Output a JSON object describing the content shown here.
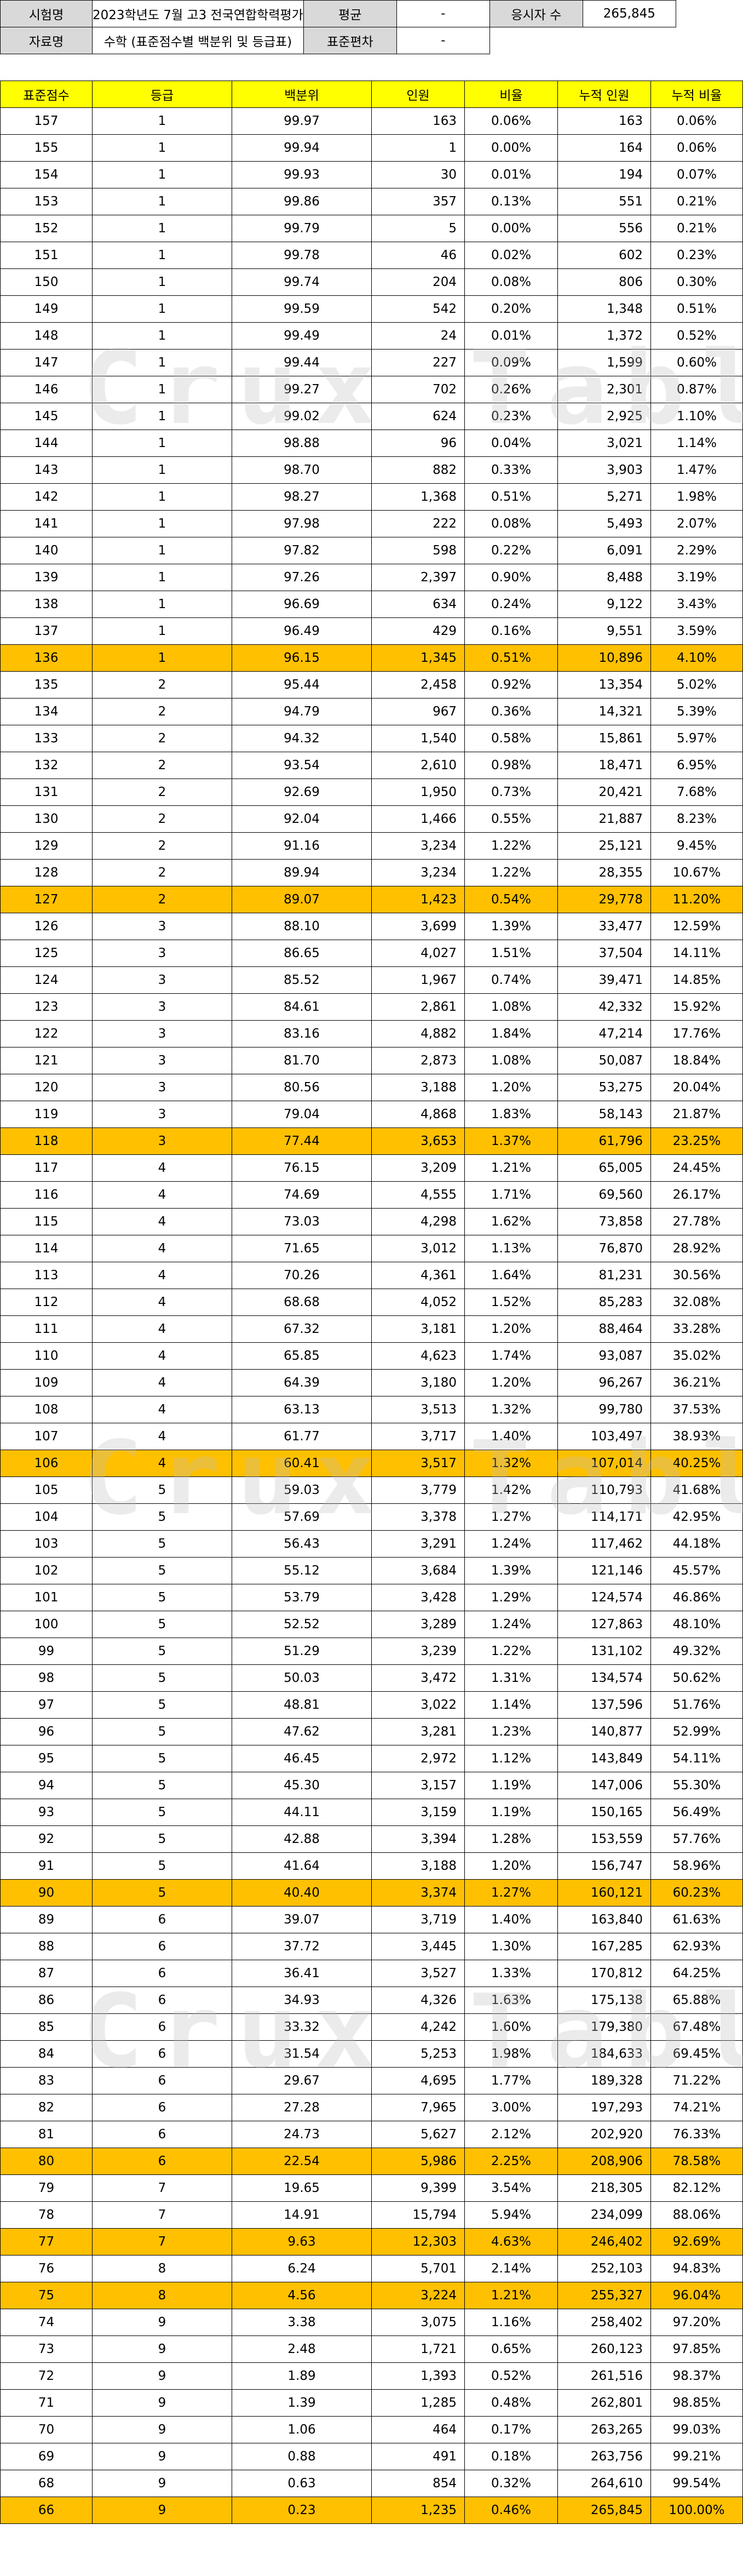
{
  "info": {
    "exam_label": "시험명",
    "exam_value": "2023학년도 7월 고3 전국연합학력평가",
    "mean_label": "평균",
    "mean_value": "-",
    "takers_label": "응시자 수",
    "takers_value": "265,845",
    "data_label": "자료명",
    "data_value": "수학 (표준점수별 백분위 및 등급표)",
    "sd_label": "표준편차",
    "sd_value": "-"
  },
  "table": {
    "headers": [
      "표준점수",
      "등급",
      "백분위",
      "인원",
      "비율",
      "누적 인원",
      "누적 비율"
    ],
    "highlight_color": "#ffc000",
    "header_color": "#ffff00",
    "rows": [
      {
        "cells": [
          "157",
          "1",
          "99.97",
          "163",
          "0.06%",
          "163",
          "0.06%"
        ],
        "hl": false
      },
      {
        "cells": [
          "155",
          "1",
          "99.94",
          "1",
          "0.00%",
          "164",
          "0.06%"
        ],
        "hl": false
      },
      {
        "cells": [
          "154",
          "1",
          "99.93",
          "30",
          "0.01%",
          "194",
          "0.07%"
        ],
        "hl": false
      },
      {
        "cells": [
          "153",
          "1",
          "99.86",
          "357",
          "0.13%",
          "551",
          "0.21%"
        ],
        "hl": false
      },
      {
        "cells": [
          "152",
          "1",
          "99.79",
          "5",
          "0.00%",
          "556",
          "0.21%"
        ],
        "hl": false
      },
      {
        "cells": [
          "151",
          "1",
          "99.78",
          "46",
          "0.02%",
          "602",
          "0.23%"
        ],
        "hl": false
      },
      {
        "cells": [
          "150",
          "1",
          "99.74",
          "204",
          "0.08%",
          "806",
          "0.30%"
        ],
        "hl": false
      },
      {
        "cells": [
          "149",
          "1",
          "99.59",
          "542",
          "0.20%",
          "1,348",
          "0.51%"
        ],
        "hl": false
      },
      {
        "cells": [
          "148",
          "1",
          "99.49",
          "24",
          "0.01%",
          "1,372",
          "0.52%"
        ],
        "hl": false
      },
      {
        "cells": [
          "147",
          "1",
          "99.44",
          "227",
          "0.09%",
          "1,599",
          "0.60%"
        ],
        "hl": false
      },
      {
        "cells": [
          "146",
          "1",
          "99.27",
          "702",
          "0.26%",
          "2,301",
          "0.87%"
        ],
        "hl": false
      },
      {
        "cells": [
          "145",
          "1",
          "99.02",
          "624",
          "0.23%",
          "2,925",
          "1.10%"
        ],
        "hl": false
      },
      {
        "cells": [
          "144",
          "1",
          "98.88",
          "96",
          "0.04%",
          "3,021",
          "1.14%"
        ],
        "hl": false
      },
      {
        "cells": [
          "143",
          "1",
          "98.70",
          "882",
          "0.33%",
          "3,903",
          "1.47%"
        ],
        "hl": false
      },
      {
        "cells": [
          "142",
          "1",
          "98.27",
          "1,368",
          "0.51%",
          "5,271",
          "1.98%"
        ],
        "hl": false
      },
      {
        "cells": [
          "141",
          "1",
          "97.98",
          "222",
          "0.08%",
          "5,493",
          "2.07%"
        ],
        "hl": false
      },
      {
        "cells": [
          "140",
          "1",
          "97.82",
          "598",
          "0.22%",
          "6,091",
          "2.29%"
        ],
        "hl": false
      },
      {
        "cells": [
          "139",
          "1",
          "97.26",
          "2,397",
          "0.90%",
          "8,488",
          "3.19%"
        ],
        "hl": false
      },
      {
        "cells": [
          "138",
          "1",
          "96.69",
          "634",
          "0.24%",
          "9,122",
          "3.43%"
        ],
        "hl": false
      },
      {
        "cells": [
          "137",
          "1",
          "96.49",
          "429",
          "0.16%",
          "9,551",
          "3.59%"
        ],
        "hl": false
      },
      {
        "cells": [
          "136",
          "1",
          "96.15",
          "1,345",
          "0.51%",
          "10,896",
          "4.10%"
        ],
        "hl": true
      },
      {
        "cells": [
          "135",
          "2",
          "95.44",
          "2,458",
          "0.92%",
          "13,354",
          "5.02%"
        ],
        "hl": false
      },
      {
        "cells": [
          "134",
          "2",
          "94.79",
          "967",
          "0.36%",
          "14,321",
          "5.39%"
        ],
        "hl": false
      },
      {
        "cells": [
          "133",
          "2",
          "94.32",
          "1,540",
          "0.58%",
          "15,861",
          "5.97%"
        ],
        "hl": false
      },
      {
        "cells": [
          "132",
          "2",
          "93.54",
          "2,610",
          "0.98%",
          "18,471",
          "6.95%"
        ],
        "hl": false
      },
      {
        "cells": [
          "131",
          "2",
          "92.69",
          "1,950",
          "0.73%",
          "20,421",
          "7.68%"
        ],
        "hl": false
      },
      {
        "cells": [
          "130",
          "2",
          "92.04",
          "1,466",
          "0.55%",
          "21,887",
          "8.23%"
        ],
        "hl": false
      },
      {
        "cells": [
          "129",
          "2",
          "91.16",
          "3,234",
          "1.22%",
          "25,121",
          "9.45%"
        ],
        "hl": false
      },
      {
        "cells": [
          "128",
          "2",
          "89.94",
          "3,234",
          "1.22%",
          "28,355",
          "10.67%"
        ],
        "hl": false
      },
      {
        "cells": [
          "127",
          "2",
          "89.07",
          "1,423",
          "0.54%",
          "29,778",
          "11.20%"
        ],
        "hl": true
      },
      {
        "cells": [
          "126",
          "3",
          "88.10",
          "3,699",
          "1.39%",
          "33,477",
          "12.59%"
        ],
        "hl": false
      },
      {
        "cells": [
          "125",
          "3",
          "86.65",
          "4,027",
          "1.51%",
          "37,504",
          "14.11%"
        ],
        "hl": false
      },
      {
        "cells": [
          "124",
          "3",
          "85.52",
          "1,967",
          "0.74%",
          "39,471",
          "14.85%"
        ],
        "hl": false
      },
      {
        "cells": [
          "123",
          "3",
          "84.61",
          "2,861",
          "1.08%",
          "42,332",
          "15.92%"
        ],
        "hl": false
      },
      {
        "cells": [
          "122",
          "3",
          "83.16",
          "4,882",
          "1.84%",
          "47,214",
          "17.76%"
        ],
        "hl": false
      },
      {
        "cells": [
          "121",
          "3",
          "81.70",
          "2,873",
          "1.08%",
          "50,087",
          "18.84%"
        ],
        "hl": false
      },
      {
        "cells": [
          "120",
          "3",
          "80.56",
          "3,188",
          "1.20%",
          "53,275",
          "20.04%"
        ],
        "hl": false
      },
      {
        "cells": [
          "119",
          "3",
          "79.04",
          "4,868",
          "1.83%",
          "58,143",
          "21.87%"
        ],
        "hl": false
      },
      {
        "cells": [
          "118",
          "3",
          "77.44",
          "3,653",
          "1.37%",
          "61,796",
          "23.25%"
        ],
        "hl": true
      },
      {
        "cells": [
          "117",
          "4",
          "76.15",
          "3,209",
          "1.21%",
          "65,005",
          "24.45%"
        ],
        "hl": false
      },
      {
        "cells": [
          "116",
          "4",
          "74.69",
          "4,555",
          "1.71%",
          "69,560",
          "26.17%"
        ],
        "hl": false
      },
      {
        "cells": [
          "115",
          "4",
          "73.03",
          "4,298",
          "1.62%",
          "73,858",
          "27.78%"
        ],
        "hl": false
      },
      {
        "cells": [
          "114",
          "4",
          "71.65",
          "3,012",
          "1.13%",
          "76,870",
          "28.92%"
        ],
        "hl": false
      },
      {
        "cells": [
          "113",
          "4",
          "70.26",
          "4,361",
          "1.64%",
          "81,231",
          "30.56%"
        ],
        "hl": false
      },
      {
        "cells": [
          "112",
          "4",
          "68.68",
          "4,052",
          "1.52%",
          "85,283",
          "32.08%"
        ],
        "hl": false
      },
      {
        "cells": [
          "111",
          "4",
          "67.32",
          "3,181",
          "1.20%",
          "88,464",
          "33.28%"
        ],
        "hl": false
      },
      {
        "cells": [
          "110",
          "4",
          "65.85",
          "4,623",
          "1.74%",
          "93,087",
          "35.02%"
        ],
        "hl": false
      },
      {
        "cells": [
          "109",
          "4",
          "64.39",
          "3,180",
          "1.20%",
          "96,267",
          "36.21%"
        ],
        "hl": false
      },
      {
        "cells": [
          "108",
          "4",
          "63.13",
          "3,513",
          "1.32%",
          "99,780",
          "37.53%"
        ],
        "hl": false
      },
      {
        "cells": [
          "107",
          "4",
          "61.77",
          "3,717",
          "1.40%",
          "103,497",
          "38.93%"
        ],
        "hl": false
      },
      {
        "cells": [
          "106",
          "4",
          "60.41",
          "3,517",
          "1.32%",
          "107,014",
          "40.25%"
        ],
        "hl": true
      },
      {
        "cells": [
          "105",
          "5",
          "59.03",
          "3,779",
          "1.42%",
          "110,793",
          "41.68%"
        ],
        "hl": false
      },
      {
        "cells": [
          "104",
          "5",
          "57.69",
          "3,378",
          "1.27%",
          "114,171",
          "42.95%"
        ],
        "hl": false
      },
      {
        "cells": [
          "103",
          "5",
          "56.43",
          "3,291",
          "1.24%",
          "117,462",
          "44.18%"
        ],
        "hl": false
      },
      {
        "cells": [
          "102",
          "5",
          "55.12",
          "3,684",
          "1.39%",
          "121,146",
          "45.57%"
        ],
        "hl": false
      },
      {
        "cells": [
          "101",
          "5",
          "53.79",
          "3,428",
          "1.29%",
          "124,574",
          "46.86%"
        ],
        "hl": false
      },
      {
        "cells": [
          "100",
          "5",
          "52.52",
          "3,289",
          "1.24%",
          "127,863",
          "48.10%"
        ],
        "hl": false
      },
      {
        "cells": [
          "99",
          "5",
          "51.29",
          "3,239",
          "1.22%",
          "131,102",
          "49.32%"
        ],
        "hl": false
      },
      {
        "cells": [
          "98",
          "5",
          "50.03",
          "3,472",
          "1.31%",
          "134,574",
          "50.62%"
        ],
        "hl": false
      },
      {
        "cells": [
          "97",
          "5",
          "48.81",
          "3,022",
          "1.14%",
          "137,596",
          "51.76%"
        ],
        "hl": false
      },
      {
        "cells": [
          "96",
          "5",
          "47.62",
          "3,281",
          "1.23%",
          "140,877",
          "52.99%"
        ],
        "hl": false
      },
      {
        "cells": [
          "95",
          "5",
          "46.45",
          "2,972",
          "1.12%",
          "143,849",
          "54.11%"
        ],
        "hl": false
      },
      {
        "cells": [
          "94",
          "5",
          "45.30",
          "3,157",
          "1.19%",
          "147,006",
          "55.30%"
        ],
        "hl": false
      },
      {
        "cells": [
          "93",
          "5",
          "44.11",
          "3,159",
          "1.19%",
          "150,165",
          "56.49%"
        ],
        "hl": false
      },
      {
        "cells": [
          "92",
          "5",
          "42.88",
          "3,394",
          "1.28%",
          "153,559",
          "57.76%"
        ],
        "hl": false
      },
      {
        "cells": [
          "91",
          "5",
          "41.64",
          "3,188",
          "1.20%",
          "156,747",
          "58.96%"
        ],
        "hl": false
      },
      {
        "cells": [
          "90",
          "5",
          "40.40",
          "3,374",
          "1.27%",
          "160,121",
          "60.23%"
        ],
        "hl": true
      },
      {
        "cells": [
          "89",
          "6",
          "39.07",
          "3,719",
          "1.40%",
          "163,840",
          "61.63%"
        ],
        "hl": false
      },
      {
        "cells": [
          "88",
          "6",
          "37.72",
          "3,445",
          "1.30%",
          "167,285",
          "62.93%"
        ],
        "hl": false
      },
      {
        "cells": [
          "87",
          "6",
          "36.41",
          "3,527",
          "1.33%",
          "170,812",
          "64.25%"
        ],
        "hl": false
      },
      {
        "cells": [
          "86",
          "6",
          "34.93",
          "4,326",
          "1.63%",
          "175,138",
          "65.88%"
        ],
        "hl": false
      },
      {
        "cells": [
          "85",
          "6",
          "33.32",
          "4,242",
          "1.60%",
          "179,380",
          "67.48%"
        ],
        "hl": false
      },
      {
        "cells": [
          "84",
          "6",
          "31.54",
          "5,253",
          "1.98%",
          "184,633",
          "69.45%"
        ],
        "hl": false
      },
      {
        "cells": [
          "83",
          "6",
          "29.67",
          "4,695",
          "1.77%",
          "189,328",
          "71.22%"
        ],
        "hl": false
      },
      {
        "cells": [
          "82",
          "6",
          "27.28",
          "7,965",
          "3.00%",
          "197,293",
          "74.21%"
        ],
        "hl": false
      },
      {
        "cells": [
          "81",
          "6",
          "24.73",
          "5,627",
          "2.12%",
          "202,920",
          "76.33%"
        ],
        "hl": false
      },
      {
        "cells": [
          "80",
          "6",
          "22.54",
          "5,986",
          "2.25%",
          "208,906",
          "78.58%"
        ],
        "hl": true
      },
      {
        "cells": [
          "79",
          "7",
          "19.65",
          "9,399",
          "3.54%",
          "218,305",
          "82.12%"
        ],
        "hl": false
      },
      {
        "cells": [
          "78",
          "7",
          "14.91",
          "15,794",
          "5.94%",
          "234,099",
          "88.06%"
        ],
        "hl": false
      },
      {
        "cells": [
          "77",
          "7",
          "9.63",
          "12,303",
          "4.63%",
          "246,402",
          "92.69%"
        ],
        "hl": true
      },
      {
        "cells": [
          "76",
          "8",
          "6.24",
          "5,701",
          "2.14%",
          "252,103",
          "94.83%"
        ],
        "hl": false
      },
      {
        "cells": [
          "75",
          "8",
          "4.56",
          "3,224",
          "1.21%",
          "255,327",
          "96.04%"
        ],
        "hl": true
      },
      {
        "cells": [
          "74",
          "9",
          "3.38",
          "3,075",
          "1.16%",
          "258,402",
          "97.20%"
        ],
        "hl": false
      },
      {
        "cells": [
          "73",
          "9",
          "2.48",
          "1,721",
          "0.65%",
          "260,123",
          "97.85%"
        ],
        "hl": false
      },
      {
        "cells": [
          "72",
          "9",
          "1.89",
          "1,393",
          "0.52%",
          "261,516",
          "98.37%"
        ],
        "hl": false
      },
      {
        "cells": [
          "71",
          "9",
          "1.39",
          "1,285",
          "0.48%",
          "262,801",
          "98.85%"
        ],
        "hl": false
      },
      {
        "cells": [
          "70",
          "9",
          "1.06",
          "464",
          "0.17%",
          "263,265",
          "99.03%"
        ],
        "hl": false
      },
      {
        "cells": [
          "69",
          "9",
          "0.88",
          "491",
          "0.18%",
          "263,756",
          "99.21%"
        ],
        "hl": false
      },
      {
        "cells": [
          "68",
          "9",
          "0.63",
          "854",
          "0.32%",
          "264,610",
          "99.54%"
        ],
        "hl": false
      },
      {
        "cells": [
          "66",
          "9",
          "0.23",
          "1,235",
          "0.46%",
          "265,845",
          "100.00%"
        ],
        "hl": true
      }
    ]
  },
  "watermark": "Crux Table"
}
